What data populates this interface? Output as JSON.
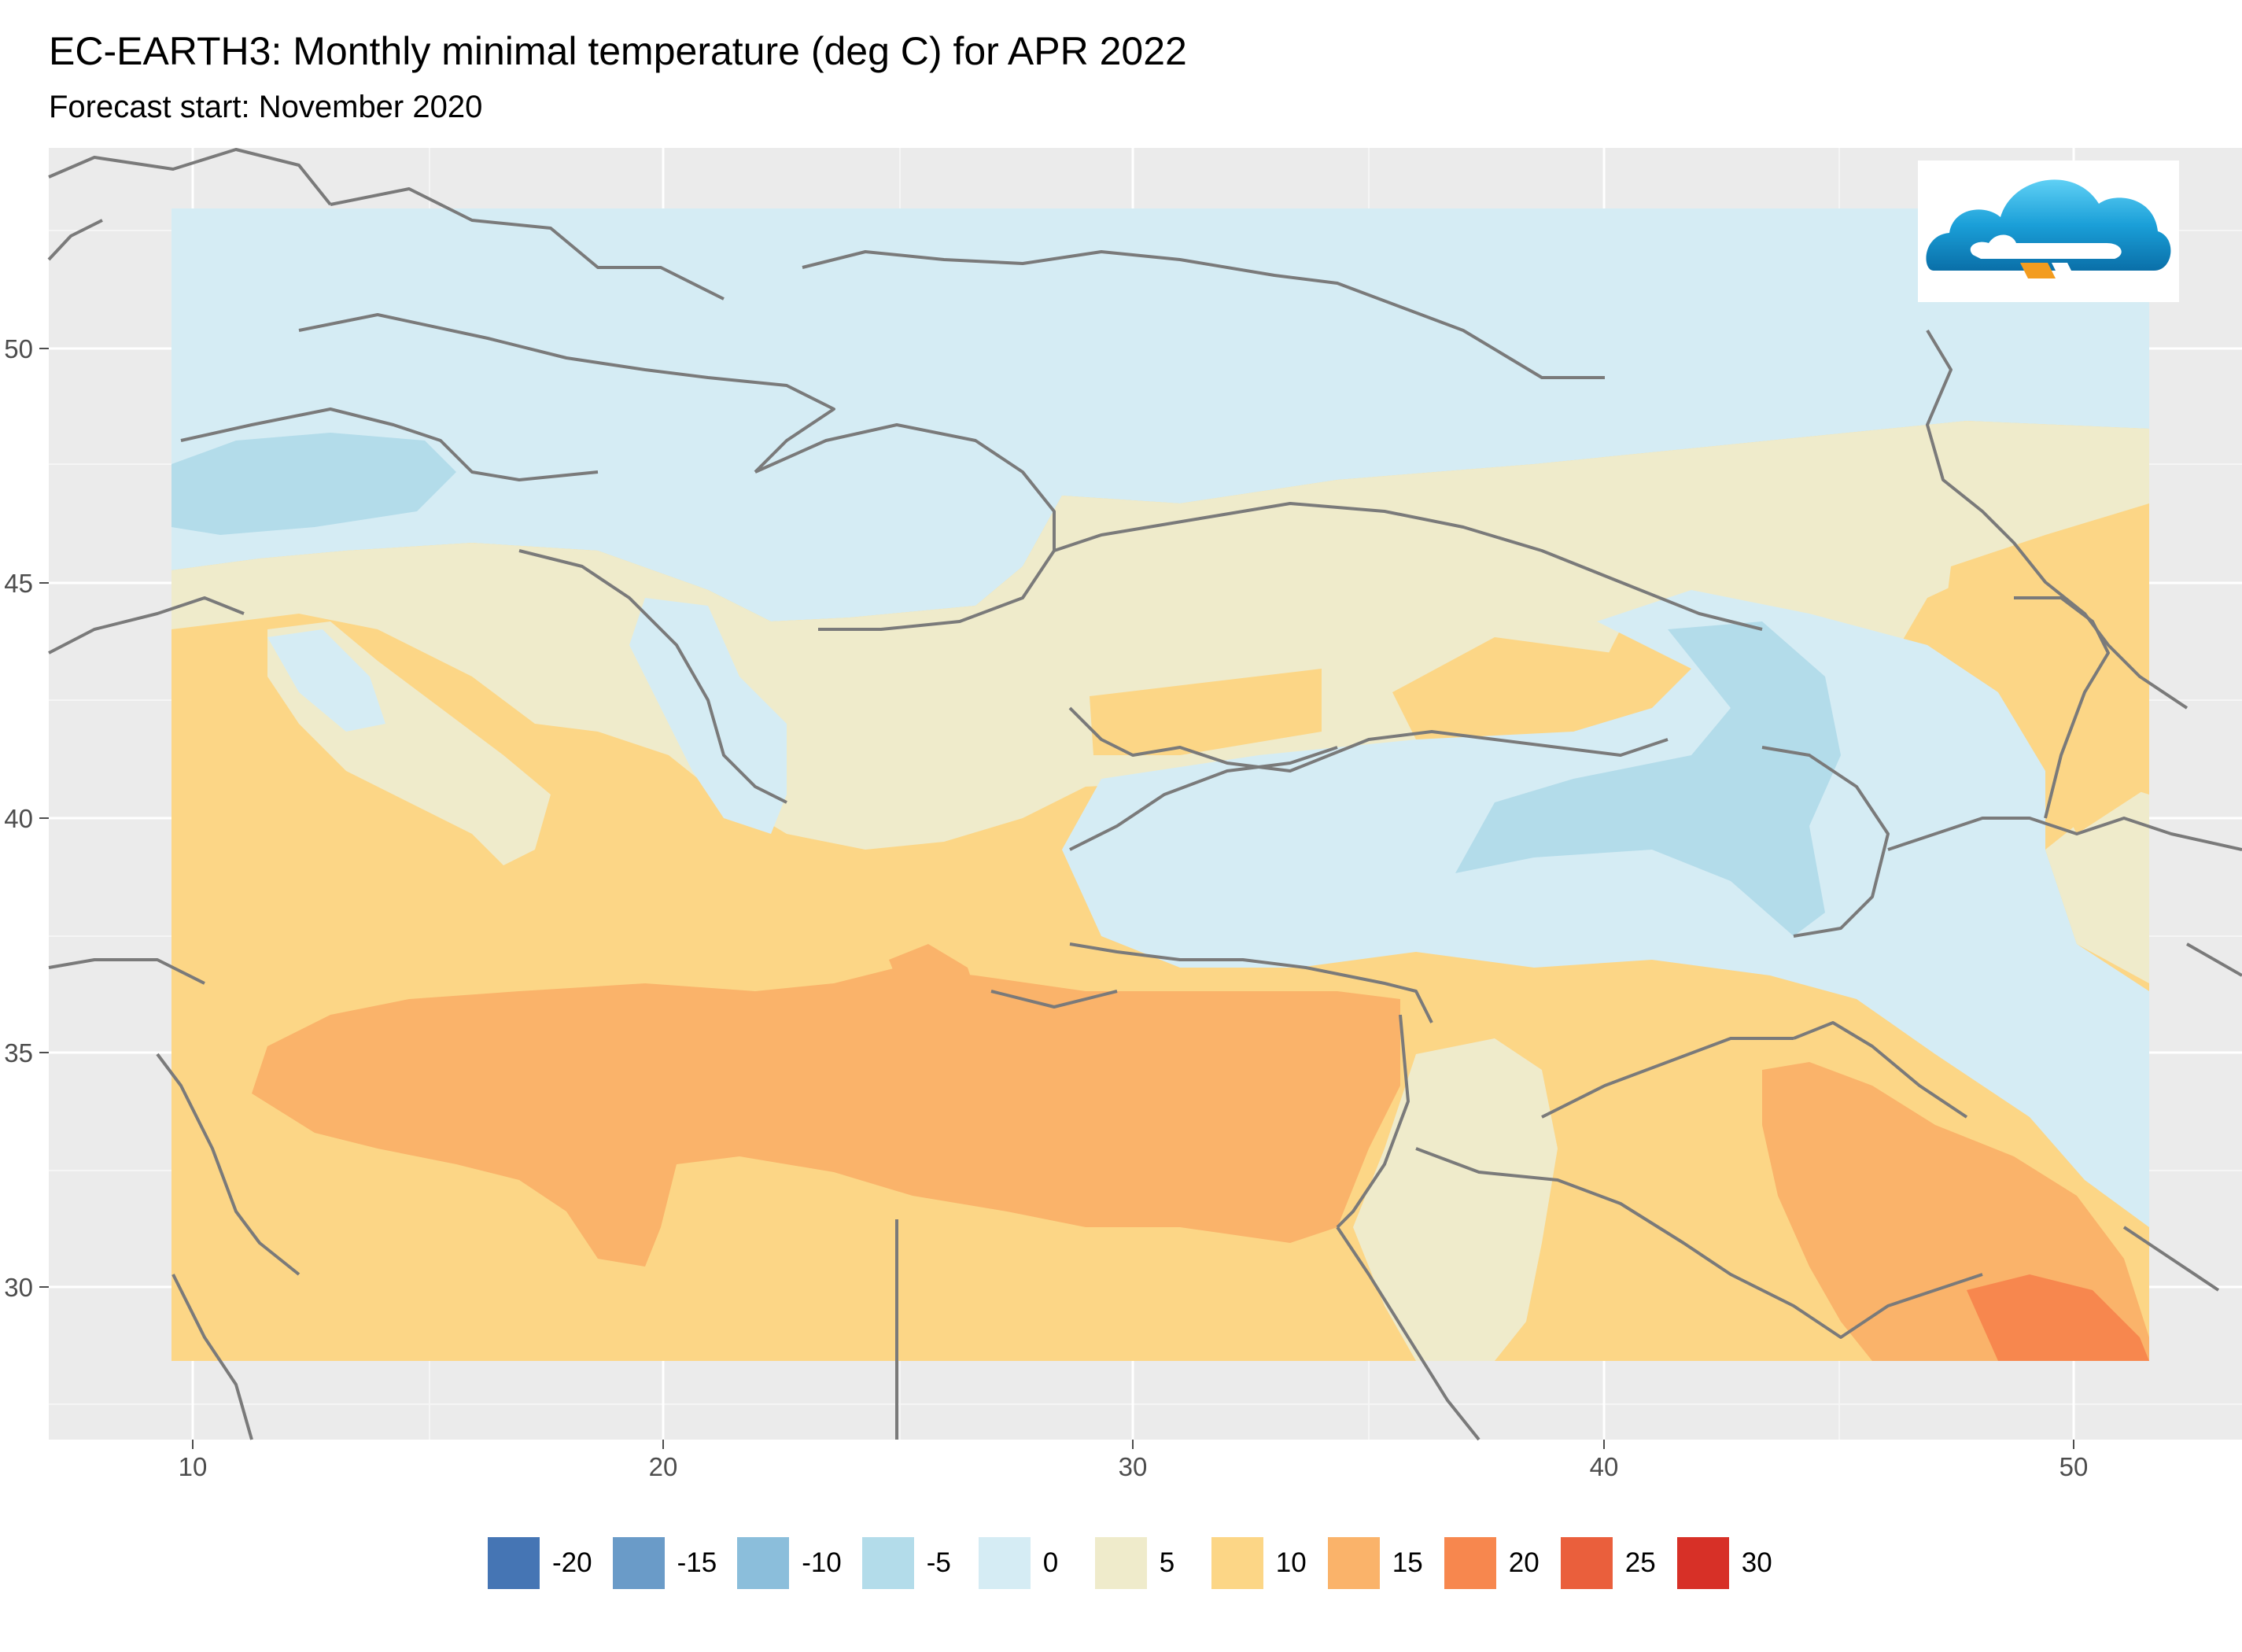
{
  "title": "EC-EARTH3: Monthly minimal temperature (deg C) for APR 2022",
  "subtitle": "Forecast start: November 2020",
  "axes": {
    "x_ticks": [
      "10",
      "20",
      "30",
      "40",
      "50"
    ],
    "y_ticks": [
      "50",
      "45",
      "40",
      "35",
      "30"
    ]
  },
  "colors": {
    "background_panel": "#ebebeb",
    "grid": "#ffffff",
    "border": "#7a7a7a"
  },
  "legend": [
    {
      "label": "-20",
      "color": "#4575b4"
    },
    {
      "label": "-15",
      "color": "#6a9bc8"
    },
    {
      "label": "-10",
      "color": "#8bbedb"
    },
    {
      "label": "-5",
      "color": "#b3dcea"
    },
    {
      "label": "0",
      "color": "#d5ecf4"
    },
    {
      "label": "5",
      "color": "#efebcb"
    },
    {
      "label": "10",
      "color": "#fcd686"
    },
    {
      "label": "15",
      "color": "#fab36a"
    },
    {
      "label": "20",
      "color": "#f7874e"
    },
    {
      "label": "25",
      "color": "#ea5f3c"
    },
    {
      "label": "30",
      "color": "#d73027"
    }
  ],
  "logo": {
    "icon": "cloud-logo-icon"
  }
}
